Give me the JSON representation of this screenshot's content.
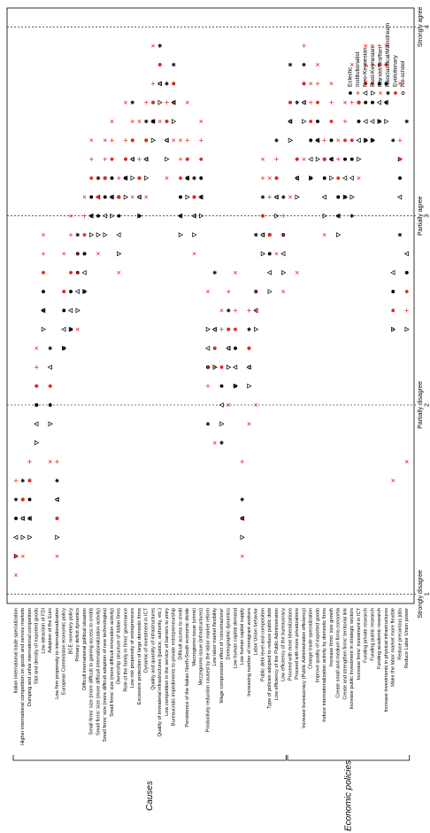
{
  "chart_data": {
    "type": "dotplot",
    "xlim": [
      0.95,
      4.1
    ],
    "xticks": [
      {
        "value": 1,
        "label": "Strongly disagree"
      },
      {
        "value": 2,
        "label": "Partially disagree"
      },
      {
        "value": 3,
        "label": "Partially agree"
      },
      {
        "value": 4,
        "label": "Strongly agree"
      }
    ],
    "grid": true,
    "legend": "lower right",
    "groups": [
      {
        "name": "Causes",
        "categories": [
          "Italian international trade specialization",
          "Higher international competition on goods and service markets",
          "Dumping and unfair international competition",
          "Slot and density of exported goods",
          "Low attraction of FDI",
          "Adoption of the Euro",
          "Low firm propensity to internationalization",
          "European Commission economic policy",
          "BCE monetary policy",
          "Primary deficit dynamics",
          "Difficult international political situation",
          "Small firms' size (more difficult to gaining access to credit)",
          "Small firms' size (more difficult internationalization activity)",
          "Small firms' size (more difficult adoption of new technologies)",
          "Small firms' size (more difficult innovation activity)",
          "Ownership structure of Italian firms",
          "Role of the family in firms' governance",
          "Low risk propensity of entrepreneurs",
          "Excessive protection of large domestic firms",
          "Dynamic of investment in ICT",
          "Quality and quantity of infrastructures",
          "Quality of immaterial infrastructures (justice, authority, etc.)",
          "Low competition in the service of barriers to entry",
          "Bureaucratic impediments to private entrepreneurship",
          "Difficult access to credit",
          "Persistence of the Italian North-South economic divide",
          "Mezzogiorno issue (crime)",
          "Mezzogiorno issue (infrastructures)",
          "Productivity reduction caused by the labor market reform",
          "Low labor market flexibility",
          "Wage compression effect of 'concertazione'",
          "Demographic dynamics",
          "Low human capital demand",
          "Low human capital supply",
          "Increasing number of immigrant workers",
          "Labor Union behavior",
          "Public debt level and composition",
          "Type of policies adopted to reduce public debt",
          "Low efficiency of the Public Administration",
          "Low efficiency of the bureaucracy"
        ]
      },
      {
        "name": "Economic policies",
        "categories": [
          "Proceed with more liberalizations",
          "Proceed with more privatizations",
          "Increase bureaucracy (Public Administration efficiency)",
          "Change trade specialization",
          "Improve quality of exported goods",
          "Induce internationalization activity by domestic firms",
          "Increase firms' size growth",
          "Create small and medium firms consortia",
          "Create and strengthen firms' territorial link",
          "Increase public investment in strategic sectors",
          "Increase firms' investment in ICT",
          "Funding private research",
          "Funding public research",
          "Funding academic research",
          "Increase investments in physical infrastructures",
          "Make the labor market more flexible",
          "Reduce precarious jobs",
          "Reduce Labor Union power"
        ]
      }
    ],
    "series": [
      {
        "name": "Eclectic",
        "color": "#000000",
        "marker": "dot",
        "values": [
          1.4,
          1.5,
          1.5,
          2.1,
          2.6,
          2.0,
          1.4,
          2.5,
          2.6,
          2.8,
          2.8,
          3.1,
          3.0,
          3.1,
          3.2,
          3.0,
          3.3,
          3.4,
          3.2,
          3.4,
          3.6,
          3.8,
          3.5,
          3.7,
          3.1,
          3.3,
          3.1,
          3.2,
          2.2,
          2.3,
          2.1,
          2.4,
          2.3,
          1.4,
          2.3,
          2.6,
          3.0,
          2.8,
          3.2,
          2.9,
          3.6,
          3.3,
          3.7,
          3.4,
          3.5,
          3.2,
          3.4,
          3.1,
          3.3,
          3.3,
          3.5,
          3.6,
          3.6,
          3.7,
          3.7,
          2.6,
          3.2,
          2.7
        ]
      },
      {
        "name": "Institutionalist",
        "color": "#e8231e",
        "marker": "plus",
        "values": [
          1.6,
          1.5,
          1.7,
          2.2,
          2.8,
          2.1,
          1.7,
          2.6,
          2.9,
          2.8,
          3.0,
          3.3,
          3.2,
          3.3,
          3.4,
          3.2,
          3.4,
          3.5,
          3.3,
          3.6,
          3.7,
          3.9,
          3.6,
          3.6,
          3.3,
          3.4,
          3.2,
          3.4,
          2.1,
          2.2,
          2.4,
          2.6,
          2.5,
          1.7,
          2.5,
          2.5,
          3.2,
          3.1,
          3.3,
          3.0,
          3.5,
          3.2,
          3.9,
          3.6,
          3.7,
          3.4,
          3.6,
          3.3,
          3.5,
          3.6,
          3.6,
          3.8,
          3.8,
          3.9,
          3.8,
          2.4,
          3.4,
          2.5
        ]
      },
      {
        "name": "Neo-Keynesian",
        "color": "#000000",
        "marker": "triangle-up",
        "values": [
          1.3,
          1.4,
          1.4,
          1.9,
          2.5,
          2.2,
          1.5,
          2.4,
          2.5,
          2.6,
          2.7,
          3.0,
          3.1,
          3.0,
          3.1,
          2.9,
          3.2,
          3.3,
          3.1,
          3.3,
          3.5,
          3.7,
          3.4,
          3.6,
          3.0,
          3.2,
          3.0,
          3.1,
          2.3,
          2.4,
          2.0,
          2.3,
          2.2,
          1.4,
          2.2,
          2.5,
          2.9,
          2.7,
          3.1,
          2.8,
          3.5,
          3.2,
          3.6,
          3.3,
          3.4,
          3.1,
          3.3,
          3.0,
          3.2,
          3.2,
          3.4,
          3.5,
          3.5,
          3.6,
          3.6,
          2.7,
          3.1,
          2.8
        ]
      },
      {
        "name": "Post-Keynesian",
        "color": "#000000",
        "marker": "triangle-down",
        "values": [
          1.2,
          1.3,
          1.3,
          1.8,
          2.4,
          1.9,
          1.3,
          2.3,
          2.4,
          2.5,
          2.6,
          2.9,
          2.9,
          2.9,
          3.0,
          2.8,
          3.1,
          3.2,
          3.0,
          3.2,
          3.4,
          3.6,
          3.3,
          3.5,
          2.9,
          3.1,
          2.9,
          3.0,
          2.4,
          2.2,
          1.9,
          2.2,
          2.1,
          1.3,
          2.1,
          2.4,
          2.8,
          2.6,
          3.0,
          2.7,
          3.4,
          3.1,
          3.5,
          3.2,
          3.3,
          3.0,
          3.2,
          2.9,
          3.1,
          3.1,
          3.3,
          3.4,
          3.4,
          3.5,
          3.5,
          2.4,
          3.3,
          2.4
        ]
      },
      {
        "name": "Marxist/Sraffian",
        "color": "#e8231e",
        "marker": "x",
        "values": [
          1.1,
          1.2,
          1.6,
          2.3,
          2.9,
          1.7,
          1.2,
          2.8,
          3.0,
          2.4,
          3.1,
          3.4,
          2.8,
          3.4,
          3.5,
          2.7,
          3.6,
          3.1,
          3.5,
          3.1,
          3.9,
          3.5,
          3.2,
          3.4,
          3.4,
          3.6,
          2.8,
          3.5,
          2.6,
          1.8,
          2.5,
          2.0,
          2.7,
          1.2,
          1.9,
          2.0,
          3.3,
          3.2,
          2.8,
          2.6,
          3.1,
          2.7,
          3.3,
          3.7,
          3.8,
          2.9,
          3.7,
          3.4,
          3.6,
          3.8,
          3.2,
          3.9,
          3.9,
          3.8,
          3.9,
          1.6,
          3.7,
          1.7
        ]
      },
      {
        "name": "Neoclassical/Mainstream",
        "color": "#000000",
        "marker": "asterisk",
        "values": [
          1.5,
          1.6,
          1.4,
          2.0,
          2.5,
          2.3,
          1.6,
          2.3,
          2.4,
          2.9,
          2.6,
          3.0,
          3.2,
          3.2,
          3.1,
          3.1,
          3.2,
          3.6,
          3.0,
          3.5,
          3.5,
          3.9,
          3.7,
          3.8,
          3.0,
          3.2,
          3.2,
          3.1,
          1.9,
          2.7,
          1.8,
          2.5,
          2.1,
          1.5,
          2.4,
          2.9,
          3.1,
          2.9,
          3.4,
          3.1,
          3.8,
          3.6,
          3.8,
          3.2,
          3.4,
          3.3,
          3.3,
          3.0,
          3.1,
          3.0,
          3.6,
          3.4,
          3.4,
          3.5,
          3.6,
          3.4,
          2.9,
          3.5
        ]
      },
      {
        "name": "Evolutionary",
        "color": "#e8231e",
        "marker": "dot",
        "values": [
          1.2,
          1.5,
          1.6,
          2.1,
          2.7,
          2.1,
          1.4,
          2.6,
          2.7,
          2.7,
          2.9,
          3.2,
          3.1,
          3.2,
          3.3,
          3.1,
          3.3,
          3.4,
          3.2,
          3.4,
          3.6,
          3.8,
          3.5,
          3.7,
          3.2,
          3.3,
          3.1,
          3.3,
          2.2,
          2.3,
          2.2,
          2.4,
          2.4,
          1.4,
          2.3,
          2.6,
          3.0,
          2.9,
          3.2,
          2.9,
          3.6,
          3.3,
          3.7,
          3.5,
          3.6,
          3.3,
          3.5,
          3.2,
          3.4,
          3.4,
          3.6,
          3.7,
          3.7,
          3.8,
          3.8,
          2.5,
          3.3,
          2.6
        ]
      },
      {
        "name": "No-school",
        "color": "#000000",
        "marker": "circle",
        "values": [
          1.4,
          1.4,
          1.5,
          2.0,
          2.6,
          2.0,
          1.5,
          2.5,
          2.6,
          2.7,
          2.8,
          3.1,
          3.0,
          3.1,
          3.2,
          3.0,
          3.2,
          3.3,
          3.1,
          3.3,
          3.5,
          3.7,
          3.4,
          3.6,
          3.1,
          3.2,
          3.0,
          3.2,
          2.2,
          2.4,
          2.1,
          2.3,
          2.3,
          1.4,
          2.2,
          2.6,
          2.9,
          2.8,
          3.1,
          2.9,
          3.5,
          3.2,
          3.6,
          3.4,
          3.5,
          3.2,
          3.4,
          3.1,
          3.3,
          3.3,
          3.5,
          3.6,
          3.6,
          3.7,
          3.7,
          2.6,
          3.2,
          2.7
        ]
      }
    ]
  }
}
